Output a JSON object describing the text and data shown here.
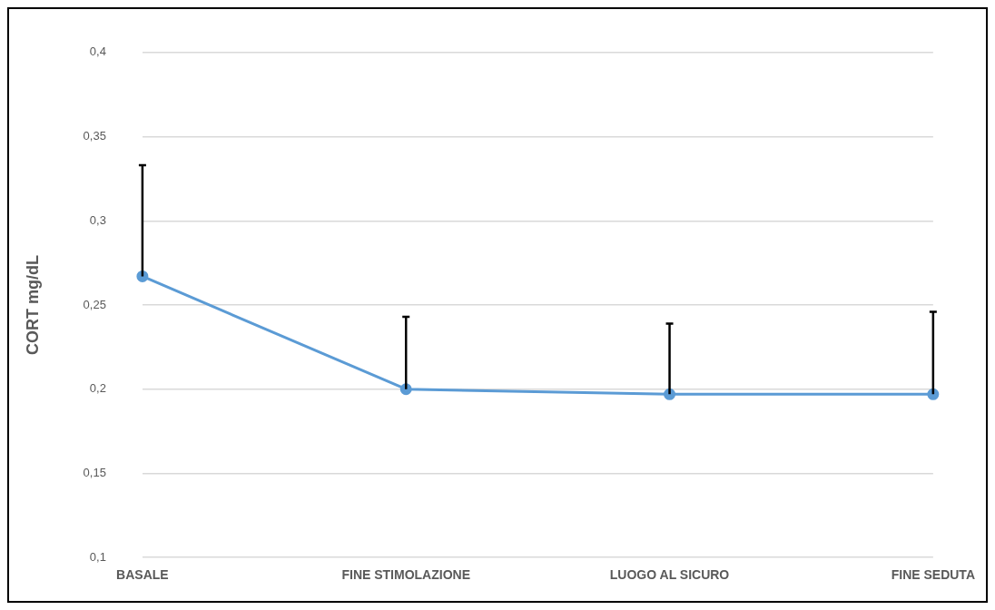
{
  "chart_data": {
    "type": "line",
    "ylabel": "CORT mg/dL",
    "categories": [
      "BASALE",
      "FINE STIMOLAZIONE",
      "LUOGO AL SICURO",
      "FINE SEDUTA"
    ],
    "series": [
      {
        "color": "#5b9bd5",
        "values": [
          0.267,
          0.2,
          0.197,
          0.197
        ],
        "errors": [
          [
            0.267,
            0.333
          ],
          [
            0.2,
            0.243
          ],
          [
            0.197,
            0.239
          ],
          [
            0.197,
            0.246
          ]
        ]
      }
    ],
    "ylim": [
      0.1,
      0.4
    ],
    "yticks": [
      {
        "value": 0.1,
        "label": "0,1"
      },
      {
        "value": 0.15,
        "label": "0,15"
      },
      {
        "value": 0.2,
        "label": "0,2"
      },
      {
        "value": 0.25,
        "label": "0,25"
      },
      {
        "value": 0.3,
        "label": "0,3"
      },
      {
        "value": 0.35,
        "label": "0,35"
      },
      {
        "value": 0.4,
        "label": "0,4"
      }
    ],
    "grid": "y",
    "legend": false,
    "marker": "circle",
    "line_style": "solid"
  }
}
